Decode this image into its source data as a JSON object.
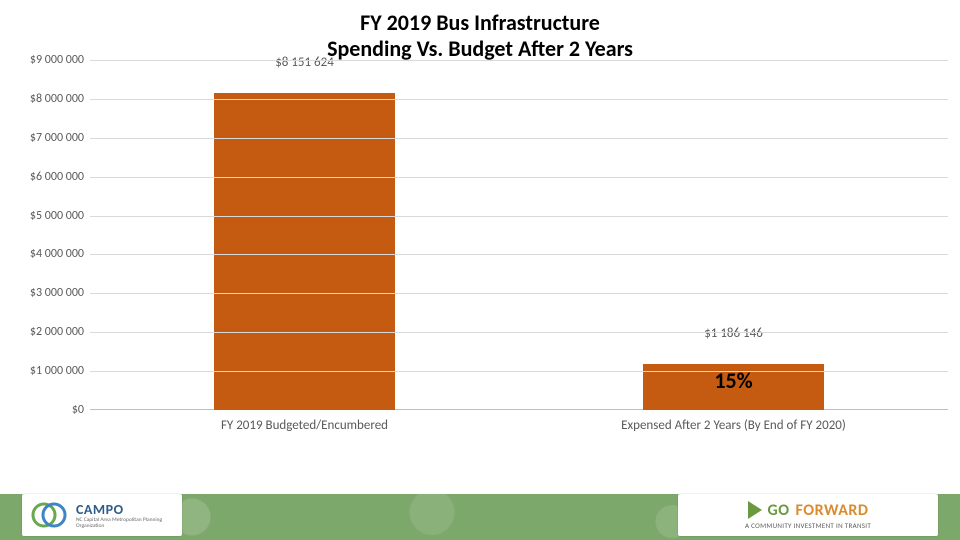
{
  "title_line1": "FY 2019 Bus Infrastructure",
  "title_line2": "Spending Vs. Budget After 2 Years",
  "title_fontsize": 22,
  "chart": {
    "type": "bar",
    "ymin": 0,
    "ymax": 9000000,
    "ytick_step": 1000000,
    "ytick_labels": [
      "$0",
      "$1 000 000",
      "$2 000 000",
      "$3 000 000",
      "$4 000 000",
      "$5 000 000",
      "$6 000 000",
      "$7 000 000",
      "$8 000 000",
      "$9 000 000"
    ],
    "grid_color": "#d9d9d9",
    "axis_label_color": "#595959",
    "axis_label_fontsize": 12,
    "background_color": "#ffffff",
    "categories": [
      "FY 2019 Budgeted/Encumbered",
      "Expensed After 2 Years (By End of FY 2020)"
    ],
    "bars": [
      {
        "value": 8151624,
        "label": "$8 151 624",
        "color": "#c55a11",
        "width_frac": 0.42
      },
      {
        "value": 1186146,
        "label": "$1 186 146",
        "color": "#c55a11",
        "width_frac": 0.42
      }
    ],
    "overlay_labels": [
      {
        "cell": 1,
        "text": "15%",
        "fontsize": 22,
        "color": "#000000",
        "y_value": 700000
      }
    ]
  },
  "footer": {
    "band_color": "#7da86b",
    "left_logo": {
      "text": "CAMPO",
      "sub": "NC Capital Area Metropolitan Planning Organization",
      "mark_colors": [
        "#6aa84f",
        "#3d85c6"
      ]
    },
    "right_logo": {
      "go": "GO",
      "forward": "FORWARD",
      "arrow_color": "#6a9a3f",
      "sub": "A COMMUNITY INVESTMENT IN TRANSIT"
    }
  }
}
